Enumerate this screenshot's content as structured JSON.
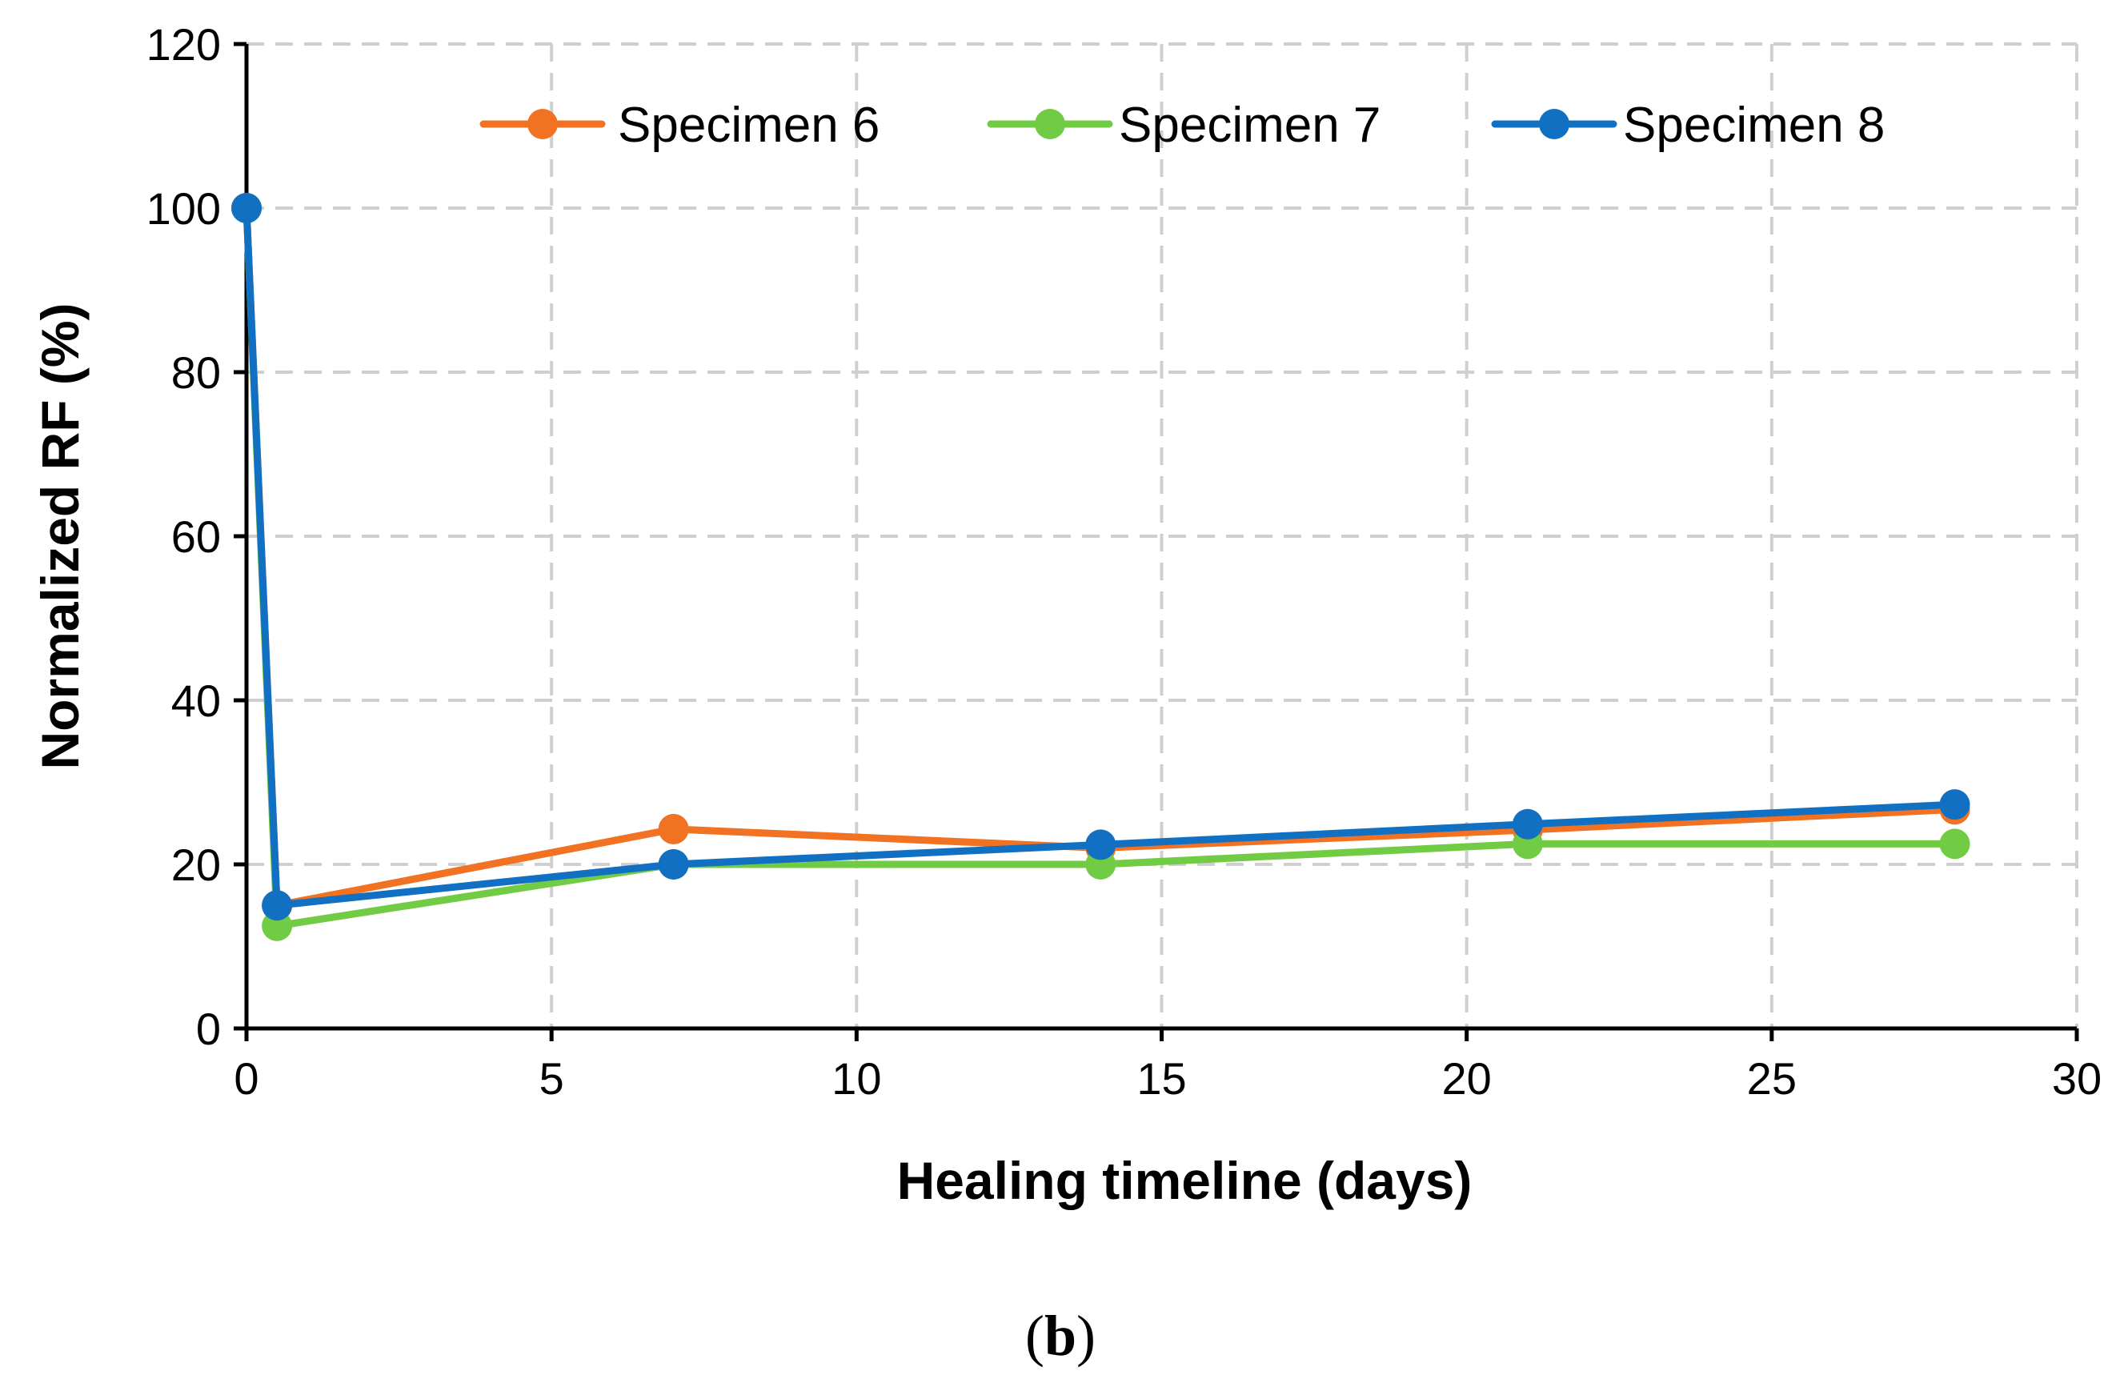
{
  "chart_data": {
    "type": "line",
    "title": "",
    "xlabel": "Healing timeline (days)",
    "ylabel": "Normalized RF (%)",
    "xlim": [
      0,
      30
    ],
    "ylim": [
      0,
      120
    ],
    "xticks": [
      0,
      5,
      10,
      15,
      20,
      25,
      30
    ],
    "yticks": [
      0,
      20,
      40,
      60,
      80,
      100,
      120
    ],
    "grid": true,
    "legend_position": "top",
    "x": [
      0,
      0.5,
      7,
      14,
      21,
      28
    ],
    "series": [
      {
        "name": "Specimen 6",
        "color": "#F27224",
        "values": [
          100,
          15,
          24.3,
          22,
          24.2,
          26.7
        ]
      },
      {
        "name": "Specimen 7",
        "color": "#72CB45",
        "values": [
          100,
          12.5,
          20,
          20,
          22.5,
          22.5
        ]
      },
      {
        "name": "Specimen 8",
        "color": "#1270C2",
        "values": [
          100,
          15,
          20,
          22.4,
          24.9,
          27.3
        ]
      }
    ]
  },
  "caption": {
    "open": "(",
    "letter": "b",
    "close": ")"
  }
}
